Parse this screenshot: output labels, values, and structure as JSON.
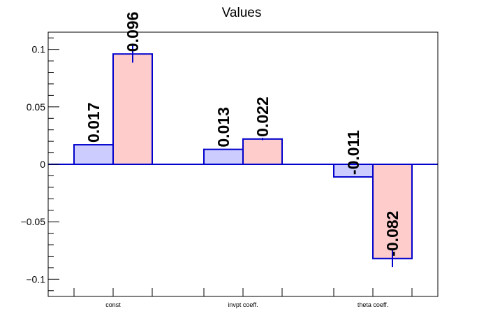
{
  "chart_data": {
    "type": "bar",
    "title": "Values",
    "xlabel": "",
    "ylabel": "",
    "categories": [
      "const",
      "invpt coeff.",
      "theta coeff."
    ],
    "series": [
      {
        "values": [
          0.017,
          0.013,
          -0.011
        ],
        "labels": [
          "0.017",
          "0.013",
          "-0.011"
        ],
        "errors": [
          0,
          0,
          0
        ],
        "fill": "#ccccff",
        "stroke": "#0000cc"
      },
      {
        "values": [
          0.096,
          0.022,
          -0.082
        ],
        "labels": [
          "0.096",
          "0.022",
          "-0.082"
        ],
        "errors": [
          0.0075,
          0.001,
          0.0075
        ],
        "fill": "#ffcccc",
        "stroke": "#0000cc"
      }
    ],
    "ylim": [
      -0.115,
      0.115
    ],
    "yticks": [
      -0.1,
      -0.05,
      0,
      0.05,
      0.1
    ],
    "ytick_labels": [
      "−0.1",
      "−0.05",
      "0",
      "0.05",
      "0.1"
    ],
    "grid": false,
    "legend": "none",
    "colors": {
      "axis": "#000000",
      "zero_line": "#0000cc",
      "background": "#ffffff"
    }
  }
}
